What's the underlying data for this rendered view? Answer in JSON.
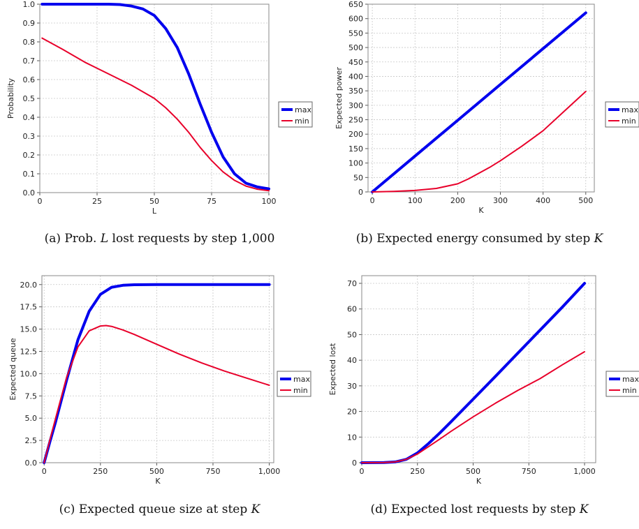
{
  "colors": {
    "max": "#0000ee",
    "min": "#e8002a",
    "grid": "#c8c8c8",
    "frame": "#888888"
  },
  "chart_data": [
    {
      "type": "line",
      "caption_prefix": "(a) Prob. ",
      "caption_var": "L",
      "caption_suffix": " lost requests by step 1,000",
      "xlabel": "L",
      "ylabel": "Probability",
      "xlim": [
        0,
        100
      ],
      "ylim": [
        0,
        1.0
      ],
      "xticks": [
        0,
        25,
        50,
        75,
        100
      ],
      "xtick_labels": [
        "0",
        "25",
        "50",
        "75",
        "100"
      ],
      "yticks": [
        0.0,
        0.1,
        0.2,
        0.3,
        0.4,
        0.5,
        0.6,
        0.7,
        0.8,
        0.9,
        1.0
      ],
      "ytick_labels": [
        "0.0",
        "0.1",
        "0.2",
        "0.3",
        "0.4",
        "0.5",
        "0.6",
        "0.7",
        "0.8",
        "0.9",
        "1.0"
      ],
      "legend": [
        "max",
        "min"
      ],
      "series": [
        {
          "name": "max",
          "x": [
            1,
            10,
            20,
            30,
            35,
            40,
            45,
            50,
            55,
            60,
            65,
            70,
            75,
            80,
            85,
            90,
            95,
            100
          ],
          "y": [
            1.0,
            1.0,
            1.0,
            1.0,
            0.998,
            0.99,
            0.975,
            0.94,
            0.87,
            0.77,
            0.63,
            0.47,
            0.32,
            0.19,
            0.1,
            0.05,
            0.03,
            0.02
          ]
        },
        {
          "name": "min",
          "x": [
            1,
            10,
            20,
            30,
            40,
            50,
            55,
            60,
            65,
            70,
            75,
            80,
            85,
            90,
            95,
            100
          ],
          "y": [
            0.82,
            0.76,
            0.69,
            0.63,
            0.57,
            0.5,
            0.45,
            0.39,
            0.32,
            0.24,
            0.17,
            0.11,
            0.065,
            0.035,
            0.018,
            0.01
          ]
        }
      ]
    },
    {
      "type": "line",
      "caption_prefix": "(b) Expected energy consumed by step ",
      "caption_var": "K",
      "caption_suffix": "",
      "xlabel": "K",
      "ylabel": "Expected power",
      "xlim": [
        -10,
        520
      ],
      "ylim": [
        0,
        650
      ],
      "xticks": [
        0,
        100,
        200,
        300,
        400,
        500
      ],
      "xtick_labels": [
        "0",
        "100",
        "200",
        "300",
        "400",
        "500"
      ],
      "yticks": [
        0,
        50,
        100,
        150,
        200,
        250,
        300,
        350,
        400,
        450,
        500,
        550,
        600,
        650
      ],
      "ytick_labels": [
        "0",
        "50",
        "100",
        "150",
        "200",
        "250",
        "300",
        "350",
        "400",
        "450",
        "500",
        "550",
        "600",
        "650"
      ],
      "legend": [
        "max",
        "min"
      ],
      "series": [
        {
          "name": "max",
          "x": [
            0,
            100,
            200,
            300,
            400,
            500
          ],
          "y": [
            0,
            124,
            248,
            372,
            496,
            620
          ]
        },
        {
          "name": "min",
          "x": [
            0,
            50,
            100,
            150,
            200,
            225,
            250,
            275,
            300,
            350,
            400,
            450,
            500
          ],
          "y": [
            0,
            2,
            5,
            12,
            28,
            45,
            65,
            85,
            108,
            158,
            212,
            280,
            348
          ]
        }
      ]
    },
    {
      "type": "line",
      "caption_prefix": "(c) Expected queue size at step ",
      "caption_var": "K",
      "caption_suffix": "",
      "xlabel": "K",
      "ylabel": "Expected queue",
      "xlim": [
        -10,
        1020
      ],
      "ylim": [
        0,
        21
      ],
      "xticks": [
        0,
        250,
        500,
        750,
        1000
      ],
      "xtick_labels": [
        "0",
        "250",
        "500",
        "750",
        "1,000"
      ],
      "yticks": [
        0.0,
        2.5,
        5.0,
        7.5,
        10.0,
        12.5,
        15.0,
        17.5,
        20.0
      ],
      "ytick_labels": [
        "0.0",
        "2.5",
        "5.0",
        "7.5",
        "10.0",
        "12.5",
        "15.0",
        "17.5",
        "20.0"
      ],
      "legend": [
        "max",
        "min"
      ],
      "series": [
        {
          "name": "max",
          "x": [
            0,
            25,
            50,
            100,
            150,
            200,
            250,
            300,
            350,
            400,
            500,
            600,
            800,
            1000
          ],
          "y": [
            0,
            2.3,
            4.5,
            9.3,
            13.8,
            17.0,
            18.9,
            19.7,
            19.92,
            19.98,
            20.0,
            20.0,
            20.0,
            20.0
          ]
        },
        {
          "name": "min",
          "x": [
            0,
            25,
            50,
            100,
            150,
            200,
            250,
            275,
            300,
            350,
            400,
            500,
            600,
            700,
            800,
            900,
            1000
          ],
          "y": [
            0,
            2.5,
            4.9,
            9.6,
            13.0,
            14.8,
            15.35,
            15.4,
            15.3,
            14.9,
            14.4,
            13.3,
            12.2,
            11.2,
            10.3,
            9.5,
            8.7
          ]
        }
      ]
    },
    {
      "type": "line",
      "caption_prefix": "(d) Expected lost requests by step ",
      "caption_var": "K",
      "caption_suffix": "",
      "xlabel": "K",
      "ylabel": "Expected lost",
      "xlim": [
        0,
        1050
      ],
      "ylim": [
        0,
        73
      ],
      "xticks": [
        0,
        250,
        500,
        750,
        1000
      ],
      "xtick_labels": [
        "0",
        "250",
        "500",
        "750",
        "1,000"
      ],
      "yticks": [
        0,
        10,
        20,
        30,
        40,
        50,
        60,
        70
      ],
      "ytick_labels": [
        "0",
        "10",
        "20",
        "30",
        "40",
        "50",
        "60",
        "70"
      ],
      "legend": [
        "max",
        "min"
      ],
      "series": [
        {
          "name": "max",
          "x": [
            0,
            100,
            150,
            200,
            250,
            300,
            350,
            400,
            500,
            600,
            700,
            800,
            900,
            1000
          ],
          "y": [
            0,
            0.05,
            0.3,
            1.3,
            3.8,
            7.5,
            11.6,
            15.9,
            24.8,
            33.7,
            42.7,
            51.7,
            60.7,
            70.0
          ]
        },
        {
          "name": "min",
          "x": [
            0,
            100,
            150,
            200,
            250,
            300,
            350,
            400,
            500,
            600,
            700,
            800,
            900,
            1000
          ],
          "y": [
            0,
            0.05,
            0.3,
            1.3,
            3.4,
            6.3,
            9.2,
            12.2,
            17.9,
            23.2,
            28.2,
            32.8,
            38.2,
            43.3
          ]
        }
      ]
    }
  ]
}
